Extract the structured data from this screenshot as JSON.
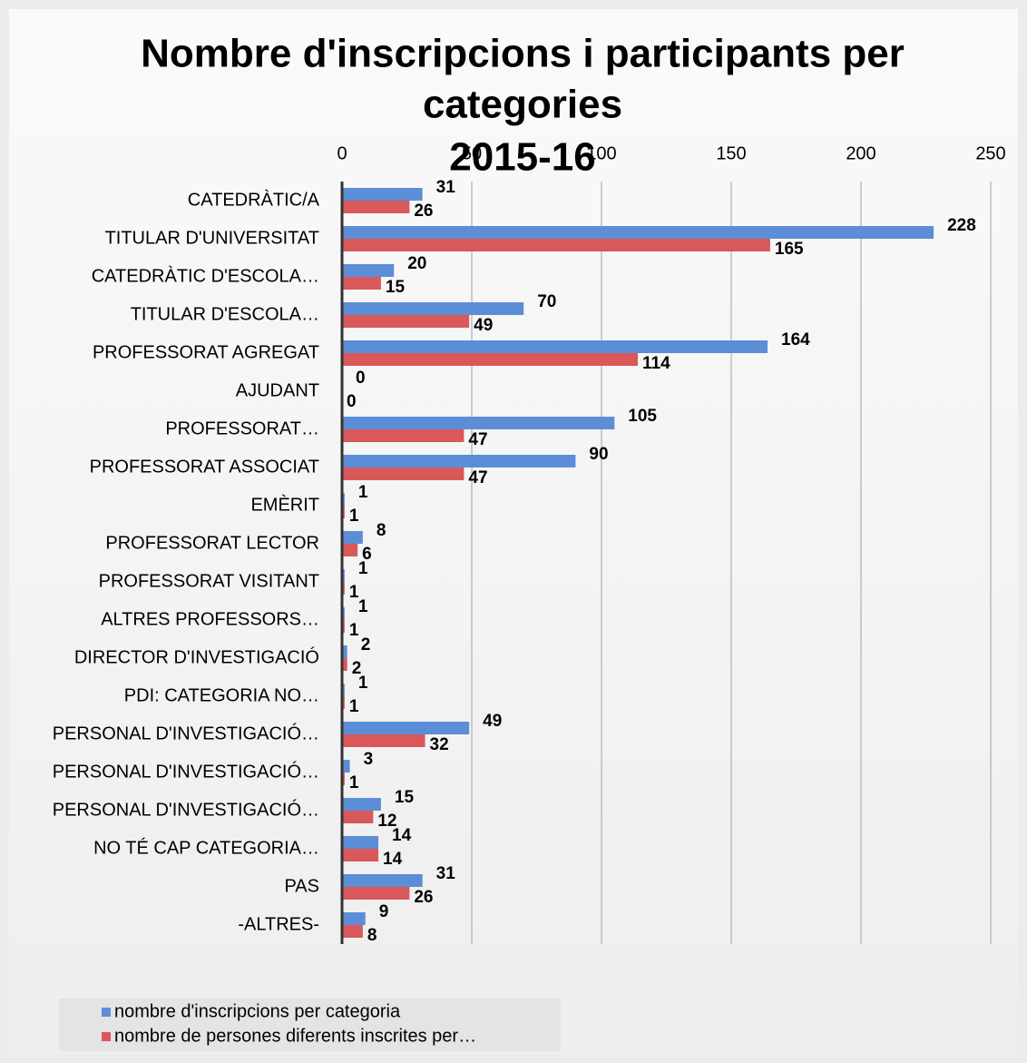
{
  "chart_data": {
    "type": "hbar",
    "title": "Nombre d'inscripcions i participants per categories",
    "subtitle": "2015-16",
    "categories": [
      "CATEDRÀTIC/A",
      "TITULAR D'UNIVERSITAT",
      "CATEDRÀTIC D'ESCOLA…",
      "TITULAR D'ESCOLA…",
      "PROFESSORAT AGREGAT",
      "AJUDANT",
      "PROFESSORAT…",
      "PROFESSORAT ASSOCIAT",
      "EMÈRIT",
      "PROFESSORAT LECTOR",
      "PROFESSORAT VISITANT",
      "ALTRES PROFESSORS…",
      "DIRECTOR D'INVESTIGACIÓ",
      "PDI: CATEGORIA NO…",
      "PERSONAL D'INVESTIGACIÓ…",
      "PERSONAL D'INVESTIGACIÓ…",
      "PERSONAL D'INVESTIGACIÓ…",
      "NO TÉ CAP CATEGORIA…",
      "PAS",
      "-ALTRES-"
    ],
    "series": [
      {
        "name": "nombre d'inscripcions per categoria",
        "color": "#5b8ed6",
        "values": [
          31,
          228,
          20,
          70,
          164,
          0,
          105,
          90,
          1,
          8,
          1,
          1,
          2,
          1,
          49,
          3,
          15,
          14,
          31,
          9
        ]
      },
      {
        "name": "nombre de persones diferents inscrites per…",
        "color": "#d9585a",
        "values": [
          26,
          165,
          15,
          49,
          114,
          0,
          47,
          47,
          1,
          6,
          1,
          1,
          2,
          1,
          32,
          1,
          12,
          14,
          26,
          8
        ]
      }
    ],
    "xlim": [
      0,
      250
    ],
    "xticks": [
      0,
      50,
      100,
      150,
      200,
      250
    ],
    "grid": true,
    "legend": "bottom-left"
  }
}
